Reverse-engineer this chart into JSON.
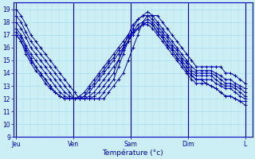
{
  "title": "",
  "xlabel": "Température (°c)",
  "ylabel": "",
  "bg_color": "#cceef5",
  "grid_color": "#aaddee",
  "line_color": "#0000bb",
  "ylim": [
    9,
    19.5
  ],
  "yticks": [
    9,
    10,
    11,
    12,
    13,
    14,
    15,
    16,
    17,
    18,
    19
  ],
  "day_labels": [
    "Jeu",
    "Ven",
    "Sam",
    "Dim",
    "L"
  ],
  "day_positions": [
    0,
    24,
    48,
    72,
    96
  ],
  "xlim_max": 99,
  "series": [
    [
      19.0,
      18.5,
      17.8,
      17.0,
      16.5,
      16.0,
      15.5,
      15.0,
      14.5,
      14.0,
      13.5,
      13.0,
      12.5,
      12.0,
      12.0,
      12.0,
      12.0,
      12.0,
      12.0,
      12.5,
      13.0,
      13.5,
      14.0,
      15.0,
      16.0,
      17.0,
      18.0,
      18.5,
      18.5,
      18.5,
      18.0,
      17.5,
      17.0,
      16.5,
      16.0,
      15.5,
      15.0,
      14.5,
      14.5,
      14.5,
      14.5,
      14.5,
      14.5,
      14.0,
      14.0,
      13.8,
      13.5,
      13.2
    ],
    [
      18.5,
      18.0,
      17.2,
      16.5,
      16.0,
      15.5,
      15.0,
      14.5,
      14.0,
      13.5,
      13.0,
      12.5,
      12.0,
      12.0,
      12.0,
      12.0,
      12.0,
      12.0,
      12.5,
      13.0,
      13.5,
      14.5,
      15.5,
      16.5,
      17.5,
      18.2,
      18.5,
      18.8,
      18.5,
      18.0,
      17.5,
      17.0,
      16.5,
      16.0,
      15.5,
      15.0,
      14.5,
      14.2,
      14.2,
      14.2,
      14.2,
      14.0,
      13.8,
      13.5,
      13.5,
      13.2,
      13.0,
      12.8
    ],
    [
      18.0,
      17.5,
      16.8,
      16.0,
      15.5,
      15.0,
      14.5,
      14.0,
      13.5,
      13.0,
      12.5,
      12.2,
      12.0,
      12.0,
      12.0,
      12.0,
      12.2,
      12.5,
      13.0,
      13.5,
      14.0,
      15.0,
      16.0,
      17.0,
      17.8,
      18.2,
      18.5,
      18.5,
      18.2,
      17.8,
      17.2,
      16.8,
      16.2,
      15.8,
      15.2,
      14.8,
      14.2,
      14.0,
      14.0,
      14.0,
      14.0,
      13.8,
      13.5,
      13.2,
      13.2,
      13.0,
      12.8,
      12.5
    ],
    [
      17.5,
      17.0,
      16.2,
      15.5,
      15.0,
      14.5,
      14.0,
      13.5,
      13.0,
      12.5,
      12.2,
      12.0,
      12.0,
      12.0,
      12.0,
      12.2,
      12.5,
      13.0,
      13.5,
      14.0,
      14.5,
      15.0,
      15.8,
      16.5,
      17.2,
      17.8,
      18.0,
      18.2,
      18.0,
      17.5,
      17.0,
      16.5,
      16.0,
      15.5,
      15.0,
      14.5,
      14.0,
      13.8,
      13.8,
      13.8,
      13.8,
      13.5,
      13.2,
      13.0,
      13.0,
      12.8,
      12.5,
      12.2
    ],
    [
      17.0,
      16.5,
      15.8,
      15.0,
      14.5,
      14.0,
      13.5,
      13.0,
      12.5,
      12.2,
      12.0,
      12.0,
      12.0,
      12.0,
      12.2,
      12.5,
      13.0,
      13.5,
      14.0,
      14.5,
      15.0,
      15.5,
      16.0,
      16.5,
      17.0,
      17.5,
      17.8,
      18.0,
      17.8,
      17.2,
      16.8,
      16.2,
      15.8,
      15.2,
      14.8,
      14.2,
      13.8,
      13.5,
      13.5,
      13.5,
      13.5,
      13.2,
      13.0,
      12.8,
      12.8,
      12.5,
      12.2,
      12.0
    ],
    [
      17.0,
      16.5,
      15.5,
      14.8,
      14.2,
      13.8,
      13.2,
      12.8,
      12.5,
      12.2,
      12.0,
      12.0,
      12.0,
      12.2,
      12.5,
      13.0,
      13.5,
      14.0,
      14.5,
      15.0,
      15.5,
      16.0,
      16.5,
      17.0,
      17.2,
      17.5,
      17.8,
      17.8,
      17.5,
      17.0,
      16.5,
      16.0,
      15.5,
      15.0,
      14.5,
      14.0,
      13.5,
      13.2,
      13.2,
      13.2,
      13.0,
      12.8,
      12.5,
      12.2,
      12.2,
      12.0,
      11.8,
      11.8
    ],
    [
      17.2,
      16.8,
      16.0,
      15.2,
      14.5,
      14.0,
      13.5,
      13.0,
      12.5,
      12.2,
      12.0,
      12.0,
      12.0,
      12.0,
      12.2,
      12.8,
      13.2,
      13.8,
      14.2,
      14.8,
      15.2,
      15.8,
      16.2,
      16.8,
      17.2,
      17.5,
      17.8,
      18.0,
      17.8,
      17.2,
      16.8,
      16.2,
      15.8,
      15.2,
      14.8,
      14.2,
      13.8,
      13.5,
      13.5,
      13.2,
      13.0,
      12.8,
      12.5,
      12.2,
      12.2,
      12.0,
      11.8,
      11.5
    ]
  ]
}
